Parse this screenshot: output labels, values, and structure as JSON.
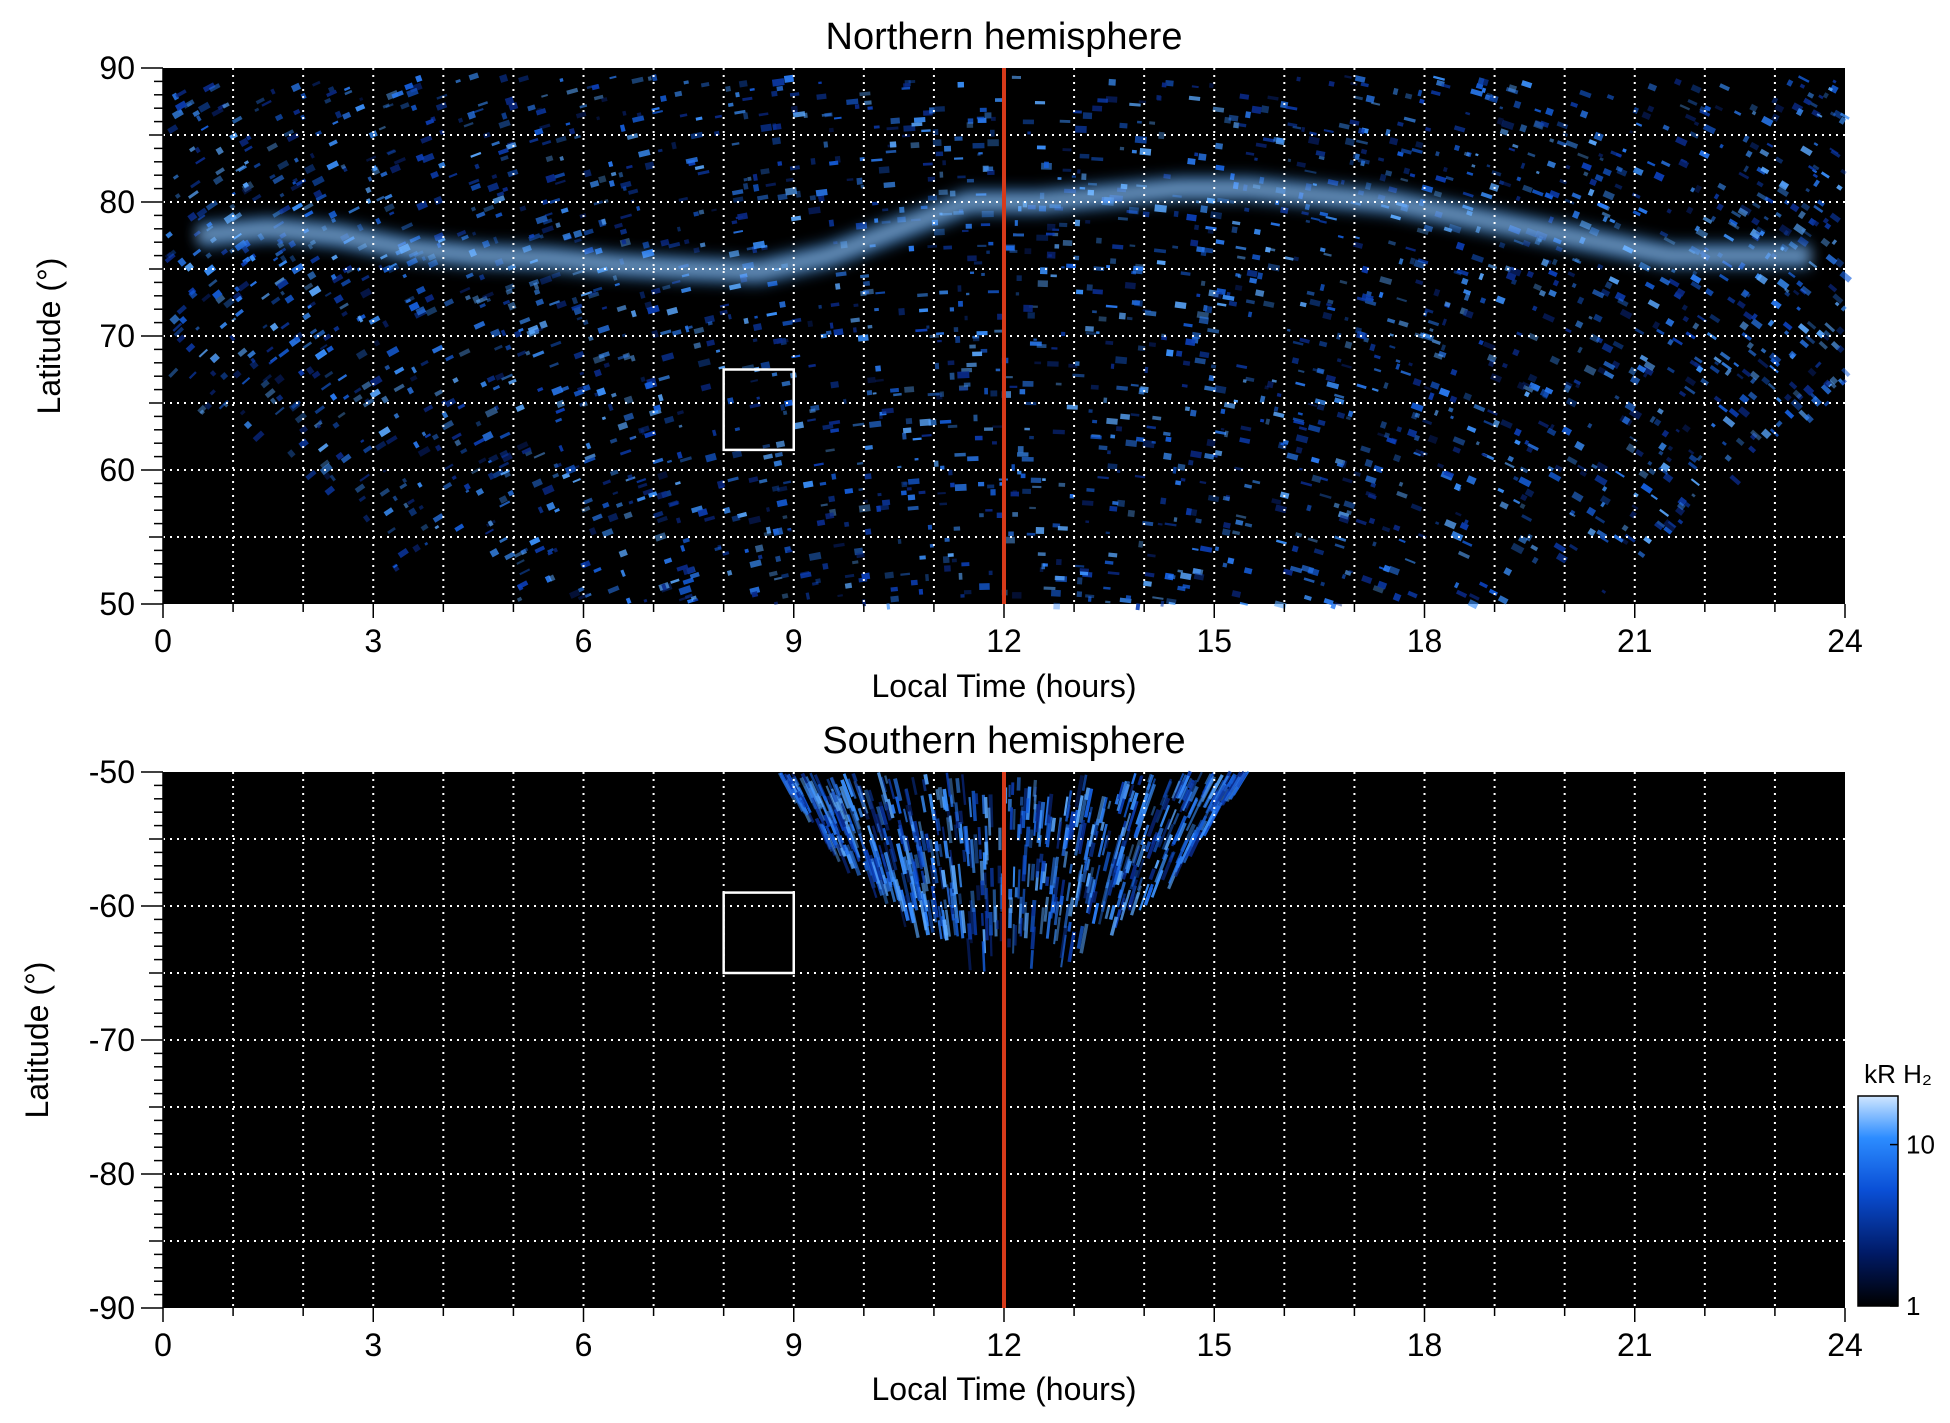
{
  "chart_data": [
    {
      "type": "heatmap",
      "title": "Northern hemisphere",
      "xlabel": "Local Time (hours)",
      "ylabel": "Latitude (°)",
      "xlim": [
        0,
        24
      ],
      "ylim": [
        50,
        90
      ],
      "xticks": [
        0,
        3,
        6,
        9,
        12,
        15,
        18,
        21,
        24
      ],
      "xtick_labels": [
        "0",
        "3",
        "6",
        "9",
        "12",
        "15",
        "18",
        "21",
        "24"
      ],
      "yticks": [
        50,
        60,
        70,
        80,
        90
      ],
      "ytick_labels": [
        "50",
        "60",
        "70",
        "80",
        "90"
      ],
      "grid": true,
      "grid_x_step": 1,
      "grid_y_step": 5,
      "marker_line": {
        "x": 12,
        "color": "#d63a1a"
      },
      "box": {
        "x0": 8,
        "x1": 9,
        "y0": 61.5,
        "y1": 67.5
      },
      "auroral_oval": [
        {
          "lt": 0.5,
          "lat": 77.5
        },
        {
          "lt": 1.5,
          "lat": 78
        },
        {
          "lt": 2.5,
          "lat": 77.5
        },
        {
          "lt": 3.5,
          "lat": 76.5
        },
        {
          "lt": 4.5,
          "lat": 76
        },
        {
          "lt": 5.5,
          "lat": 75.8
        },
        {
          "lt": 6.5,
          "lat": 75.3
        },
        {
          "lt": 7.5,
          "lat": 75
        },
        {
          "lt": 8.5,
          "lat": 74.8
        },
        {
          "lt": 9.5,
          "lat": 76
        },
        {
          "lt": 10.5,
          "lat": 78
        },
        {
          "lt": 11.5,
          "lat": 80
        },
        {
          "lt": 12.5,
          "lat": 80
        },
        {
          "lt": 13.5,
          "lat": 80.5
        },
        {
          "lt": 14.5,
          "lat": 81
        },
        {
          "lt": 15.5,
          "lat": 81
        },
        {
          "lt": 16.5,
          "lat": 80.5
        },
        {
          "lt": 17.5,
          "lat": 80
        },
        {
          "lt": 18.5,
          "lat": 79
        },
        {
          "lt": 19.5,
          "lat": 78
        },
        {
          "lt": 20.5,
          "lat": 77
        },
        {
          "lt": 21.5,
          "lat": 76
        },
        {
          "lt": 22.5,
          "lat": 76
        },
        {
          "lt": 23.5,
          "lat": 76
        }
      ],
      "coverage_lower_edge": [
        {
          "lt": 0,
          "lat": 65
        },
        {
          "lt": 1,
          "lat": 63
        },
        {
          "lt": 2,
          "lat": 59
        },
        {
          "lt": 3,
          "lat": 54
        },
        {
          "lt": 3.5,
          "lat": 50.5
        },
        {
          "lt": 4,
          "lat": 55
        },
        {
          "lt": 4.5,
          "lat": 55
        },
        {
          "lt": 5,
          "lat": 50
        },
        {
          "lt": 19,
          "lat": 50
        },
        {
          "lt": 19.5,
          "lat": 53
        },
        {
          "lt": 20,
          "lat": 53
        },
        {
          "lt": 20.5,
          "lat": 50.5
        },
        {
          "lt": 21,
          "lat": 53
        },
        {
          "lt": 22,
          "lat": 58
        },
        {
          "lt": 23,
          "lat": 62
        },
        {
          "lt": 24,
          "lat": 65
        }
      ]
    },
    {
      "type": "heatmap",
      "title": "Southern hemisphere",
      "xlabel": "Local Time (hours)",
      "ylabel": "Latitude (°)",
      "xlim": [
        0,
        24
      ],
      "ylim": [
        -90,
        -50
      ],
      "xticks": [
        0,
        3,
        6,
        9,
        12,
        15,
        18,
        21,
        24
      ],
      "xtick_labels": [
        "0",
        "3",
        "6",
        "9",
        "12",
        "15",
        "18",
        "21",
        "24"
      ],
      "yticks": [
        -50,
        -60,
        -70,
        -80,
        -90
      ],
      "ytick_labels": [
        "-50",
        "-60",
        "-70",
        "-80",
        "-90"
      ],
      "grid": true,
      "grid_x_step": 1,
      "grid_y_step": 5,
      "marker_line": {
        "x": 12,
        "color": "#d63a1a"
      },
      "box": {
        "x0": 8,
        "x1": 9,
        "y0": -65,
        "y1": -59
      },
      "coverage_edge": [
        {
          "lt": 8.8,
          "lat": -50
        },
        {
          "lt": 9.5,
          "lat": -55
        },
        {
          "lt": 10.5,
          "lat": -59.5
        },
        {
          "lt": 11.5,
          "lat": -62.5
        },
        {
          "lt": 12.5,
          "lat": -63.5
        },
        {
          "lt": 13.5,
          "lat": -61.5
        },
        {
          "lt": 14.5,
          "lat": -57
        },
        {
          "lt": 15.2,
          "lat": -52
        },
        {
          "lt": 15.5,
          "lat": -50
        }
      ]
    }
  ],
  "colorbar": {
    "unit_label": "kR H₂",
    "scale": "log",
    "range": [
      1,
      20
    ],
    "tick_values": [
      10,
      1
    ],
    "tick_labels": [
      "10",
      "1"
    ],
    "colors": [
      "#000000",
      "#001a66",
      "#0a4fd6",
      "#2c8cff",
      "#cfe6ff"
    ]
  }
}
